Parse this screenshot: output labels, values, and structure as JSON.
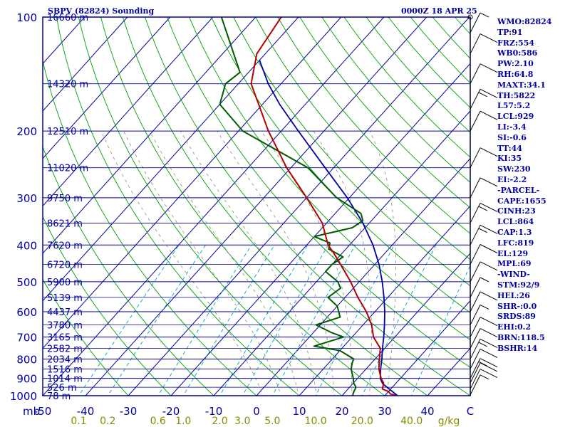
{
  "header": {
    "title": "SBPV (82824) Sounding",
    "time": "0000Z 18 APR 25"
  },
  "indices": [
    "WMO:82824",
    "TP:91",
    "FRZ:554",
    "WB0:586",
    "PW:2.10",
    "RH:64.8",
    "MAXT:34.1",
    "TH:5822",
    "L57:5.2",
    "LCL:929",
    "LI:-3.4",
    "SI:-0.6",
    "TT:44",
    "KI:35",
    "SW:230",
    "EI:-2.2",
    "-PARCEL-",
    "CAPE:1655",
    "CINH:23",
    "LCL:864",
    "CAP:1.3",
    "LFC:819",
    "EL:129",
    "MPL:69",
    "-WIND-",
    "STM:92/9",
    "HEL:26",
    "SHR-:0.0",
    "SRDS:89",
    "EHI:0.2",
    "BRN:118.5",
    "BSHR:14"
  ],
  "chart_data": {
    "type": "line",
    "title": "SBPV (82824) Sounding",
    "plot": "skew-T log-p",
    "y_axis": {
      "quantity": "pressure (mb)",
      "scale": "log, inverted",
      "range": [
        1000,
        100
      ],
      "ticks": [
        100,
        200,
        300,
        400,
        500,
        600,
        700,
        800,
        900,
        1000
      ],
      "unit_label": "mb"
    },
    "x_axis": {
      "quantity": "temperature (C)",
      "ticks": [
        -50,
        -40,
        -30,
        -20,
        -10,
        0,
        10,
        20,
        30,
        40
      ],
      "unit_label": "C"
    },
    "mixing_ratio_labels": [
      "0.1",
      "0.2",
      "0.6",
      "1.0",
      "2.0",
      "3.0",
      "5.0",
      "10.0",
      "20.0",
      "40.0"
    ],
    "mixing_ratio_unit": "g/kg",
    "height_labels": [
      {
        "p": 100,
        "label": "16660 m"
      },
      {
        "p": 150,
        "label": "14320 m"
      },
      {
        "p": 200,
        "label": "12510 m"
      },
      {
        "p": 250,
        "label": "11020 m"
      },
      {
        "p": 300,
        "label": "9750 m"
      },
      {
        "p": 350,
        "label": "8621 m"
      },
      {
        "p": 400,
        "label": "7620 m"
      },
      {
        "p": 450,
        "label": "6720 m"
      },
      {
        "p": 500,
        "label": "5900 m"
      },
      {
        "p": 550,
        "label": "5139 m"
      },
      {
        "p": 600,
        "label": "4437 m"
      },
      {
        "p": 650,
        "label": "3780 m"
      },
      {
        "p": 700,
        "label": "3165 m"
      },
      {
        "p": 750,
        "label": "2582 m"
      },
      {
        "p": 800,
        "label": "2034 m"
      },
      {
        "p": 850,
        "label": "1516 m"
      },
      {
        "p": 900,
        "label": "1014 m"
      },
      {
        "p": 950,
        "label": "526 m"
      },
      {
        "p": 1000,
        "label": "78 m"
      }
    ],
    "colors": {
      "isobar": "#0000a0",
      "isotherm": "#0000a0",
      "dry_adiabat": "#009f00",
      "mixing_ratio": "#00a0c8",
      "moist_adiabat": "#8c8c6e",
      "temperature": "#b40000",
      "dewpoint": "#005a00",
      "parcel": "#0000a0",
      "wind": "#000000"
    },
    "temperature_profile": [
      [
        1000,
        33.0
      ],
      [
        990,
        31.0
      ],
      [
        975,
        30.0
      ],
      [
        960,
        28.0
      ],
      [
        940,
        27.5
      ],
      [
        925,
        27.0
      ],
      [
        900,
        25.5
      ],
      [
        870,
        24.0
      ],
      [
        850,
        23.0
      ],
      [
        800,
        21.0
      ],
      [
        750,
        19.0
      ],
      [
        700,
        15.0
      ],
      [
        650,
        12.0
      ],
      [
        600,
        8.0
      ],
      [
        550,
        3.0
      ],
      [
        500,
        -2.0
      ],
      [
        450,
        -8.0
      ],
      [
        420,
        -12.0
      ],
      [
        400,
        -15.0
      ],
      [
        350,
        -21.0
      ],
      [
        300,
        -30.0
      ],
      [
        250,
        -41.0
      ],
      [
        200,
        -53.0
      ],
      [
        150,
        -67.0
      ],
      [
        125,
        -72.0
      ],
      [
        100,
        -74.0
      ]
    ],
    "dewpoint_profile": [
      [
        1000,
        22.5
      ],
      [
        980,
        22.0
      ],
      [
        950,
        21.5
      ],
      [
        925,
        20.0
      ],
      [
        900,
        19.0
      ],
      [
        870,
        17.5
      ],
      [
        850,
        16.5
      ],
      [
        820,
        15.5
      ],
      [
        800,
        15.0
      ],
      [
        760,
        10.0
      ],
      [
        740,
        3.0
      ],
      [
        700,
        8.0
      ],
      [
        680,
        4.0
      ],
      [
        650,
        -1.0
      ],
      [
        620,
        3.0
      ],
      [
        580,
        0.0
      ],
      [
        550,
        -4.0
      ],
      [
        520,
        -3.0
      ],
      [
        500,
        -5.0
      ],
      [
        470,
        -10.0
      ],
      [
        450,
        -10.0
      ],
      [
        430,
        -9.0
      ],
      [
        410,
        -14.0
      ],
      [
        395,
        -15.0
      ],
      [
        380,
        -20.0
      ],
      [
        360,
        -13.0
      ],
      [
        345,
        -12.0
      ],
      [
        330,
        -14.0
      ],
      [
        300,
        -23.0
      ],
      [
        250,
        -36.0
      ],
      [
        200,
        -59.0
      ],
      [
        170,
        -70.0
      ],
      [
        150,
        -73.0
      ],
      [
        140,
        -72.0
      ],
      [
        100,
        -88.0
      ]
    ],
    "parcel_profile": [
      [
        1000,
        33.0
      ],
      [
        930,
        27.0
      ],
      [
        900,
        25.3
      ],
      [
        850,
        23.4
      ],
      [
        800,
        21.6
      ],
      [
        750,
        19.5
      ],
      [
        700,
        17.4
      ],
      [
        650,
        15.0
      ],
      [
        600,
        12.3
      ],
      [
        550,
        9.1
      ],
      [
        500,
        5.4
      ],
      [
        450,
        1.0
      ],
      [
        400,
        -4.5
      ],
      [
        350,
        -11.5
      ],
      [
        300,
        -20.5
      ],
      [
        250,
        -32.0
      ],
      [
        200,
        -46.0
      ],
      [
        170,
        -56.0
      ],
      [
        150,
        -63.0
      ],
      [
        130,
        -70.0
      ]
    ],
    "wind_barbs": [
      {
        "p": 995,
        "speed_kt": 5
      },
      {
        "p": 960,
        "speed_kt": 10
      },
      {
        "p": 925,
        "speed_kt": 10
      },
      {
        "p": 900,
        "speed_kt": 15
      },
      {
        "p": 850,
        "speed_kt": 10
      },
      {
        "p": 800,
        "speed_kt": 15
      },
      {
        "p": 750,
        "speed_kt": 10
      },
      {
        "p": 700,
        "speed_kt": 10
      },
      {
        "p": 650,
        "speed_kt": 5
      },
      {
        "p": 600,
        "speed_kt": 10
      },
      {
        "p": 550,
        "speed_kt": 5
      },
      {
        "p": 500,
        "speed_kt": 10
      },
      {
        "p": 450,
        "speed_kt": 10
      },
      {
        "p": 400,
        "speed_kt": 15
      },
      {
        "p": 350,
        "speed_kt": 15
      },
      {
        "p": 300,
        "speed_kt": 10
      },
      {
        "p": 250,
        "speed_kt": 10
      },
      {
        "p": 200,
        "speed_kt": 10
      },
      {
        "p": 175,
        "speed_kt": 15
      },
      {
        "p": 150,
        "speed_kt": 10
      },
      {
        "p": 125,
        "speed_kt": 10
      },
      {
        "p": 110,
        "speed_kt": 5
      },
      {
        "p": 100,
        "speed_kt": 0
      }
    ]
  }
}
